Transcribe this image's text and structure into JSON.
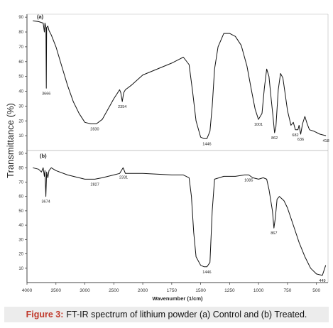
{
  "chart_data": {
    "type": "line",
    "ylabel": "Transmittance (%)",
    "xlabel": "Wavenumber (1/cm)",
    "xlim": [
      4000,
      400
    ],
    "x_ticks": [
      "4000",
      "3500",
      "3000",
      "2500",
      "2000",
      "1750",
      "1500",
      "1250",
      "1000",
      "750",
      "500"
    ],
    "panels": [
      {
        "label": "(a)",
        "ylim": [
          0,
          92
        ],
        "y_ticks": [
          "10",
          "20",
          "30",
          "40",
          "50",
          "60",
          "70",
          "80",
          "90"
        ],
        "series": [
          {
            "points": [
              [
                3900,
                87.5
              ],
              [
                3800,
                87
              ],
              [
                3720,
                86
              ],
              [
                3700,
                80
              ],
              [
                3690,
                86
              ],
              [
                3672,
                83
              ],
              [
                3666,
                42
              ],
              [
                3660,
                83
              ],
              [
                3640,
                84
              ],
              [
                3620,
                81
              ],
              [
                3580,
                78
              ],
              [
                3500,
                70
              ],
              [
                3400,
                57
              ],
              [
                3300,
                44
              ],
              [
                3200,
                33
              ],
              [
                3100,
                25
              ],
              [
                3000,
                19
              ],
              [
                2900,
                18
              ],
              [
                2800,
                18
              ],
              [
                2700,
                21
              ],
              [
                2600,
                28
              ],
              [
                2500,
                35
              ],
              [
                2400,
                41
              ],
              [
                2380,
                39
              ],
              [
                2354,
                33
              ],
              [
                2330,
                39
              ],
              [
                2300,
                41
              ],
              [
                2200,
                44
              ],
              [
                2000,
                51
              ],
              [
                1750,
                59
              ],
              [
                1650,
                63
              ],
              [
                1600,
                58
              ],
              [
                1570,
                40
              ],
              [
                1540,
                20
              ],
              [
                1500,
                9
              ],
              [
                1470,
                8
              ],
              [
                1446,
                8
              ],
              [
                1420,
                13
              ],
              [
                1400,
                30
              ],
              [
                1380,
                55
              ],
              [
                1350,
                70
              ],
              [
                1300,
                79
              ],
              [
                1250,
                79
              ],
              [
                1200,
                77
              ],
              [
                1150,
                71
              ],
              [
                1100,
                57
              ],
              [
                1060,
                40
              ],
              [
                1030,
                28
              ],
              [
                1001,
                21
              ],
              [
                970,
                25
              ],
              [
                950,
                42
              ],
              [
                930,
                55
              ],
              [
                910,
                50
              ],
              [
                890,
                34
              ],
              [
                875,
                23
              ],
              [
                862,
                12
              ],
              [
                850,
                16
              ],
              [
                830,
                41
              ],
              [
                810,
                52
              ],
              [
                790,
                49
              ],
              [
                770,
                38
              ],
              [
                750,
                27
              ],
              [
                720,
                17
              ],
              [
                700,
                19
              ],
              [
                682,
                14
              ],
              [
                660,
                14
              ],
              [
                650,
                17
              ],
              [
                636,
                11
              ],
              [
                620,
                18
              ],
              [
                600,
                23
              ],
              [
                580,
                18
              ],
              [
                560,
                14
              ],
              [
                520,
                13
              ],
              [
                470,
                11
              ],
              [
                418,
                10
              ]
            ]
          }
        ],
        "annotations": [
          {
            "text": "3666",
            "x": 3666,
            "y": 42
          },
          {
            "text": "2830",
            "x": 2830,
            "y": 18
          },
          {
            "text": "2354",
            "x": 2354,
            "y": 33
          },
          {
            "text": "1446",
            "x": 1446,
            "y": 8
          },
          {
            "text": "1001",
            "x": 1001,
            "y": 21
          },
          {
            "text": "862",
            "x": 862,
            "y": 12
          },
          {
            "text": "682",
            "x": 682,
            "y": 14
          },
          {
            "text": "636",
            "x": 636,
            "y": 11
          },
          {
            "text": "418",
            "x": 418,
            "y": 10
          }
        ]
      },
      {
        "label": "(b)",
        "ylim": [
          0,
          92
        ],
        "y_ticks": [
          "10",
          "20",
          "30",
          "40",
          "50",
          "60",
          "70",
          "80",
          "90"
        ],
        "series": [
          {
            "points": [
              [
                3900,
                80
              ],
              [
                3800,
                79
              ],
              [
                3750,
                77
              ],
              [
                3720,
                80
              ],
              [
                3700,
                74
              ],
              [
                3690,
                78
              ],
              [
                3674,
                60
              ],
              [
                3660,
                77
              ],
              [
                3640,
                73
              ],
              [
                3620,
                78
              ],
              [
                3580,
                80
              ],
              [
                3500,
                78
              ],
              [
                3300,
                75
              ],
              [
                3000,
                72
              ],
              [
                2827,
                72
              ],
              [
                2700,
                73
              ],
              [
                2500,
                75
              ],
              [
                2400,
                76
              ],
              [
                2340,
                80
              ],
              [
                2300,
                76
              ],
              [
                2000,
                76
              ],
              [
                1750,
                75
              ],
              [
                1650,
                75
              ],
              [
                1600,
                73
              ],
              [
                1580,
                60
              ],
              [
                1560,
                35
              ],
              [
                1540,
                18
              ],
              [
                1500,
                12
              ],
              [
                1470,
                11
              ],
              [
                1446,
                11
              ],
              [
                1420,
                14
              ],
              [
                1400,
                50
              ],
              [
                1380,
                72
              ],
              [
                1300,
                74
              ],
              [
                1200,
                74
              ],
              [
                1120,
                75
              ],
              [
                1085,
                75
              ],
              [
                1050,
                73
              ],
              [
                1000,
                72
              ],
              [
                960,
                73
              ],
              [
                930,
                72
              ],
              [
                910,
                65
              ],
              [
                880,
                50
              ],
              [
                867,
                38
              ],
              [
                855,
                45
              ],
              [
                840,
                58
              ],
              [
                820,
                60
              ],
              [
                780,
                57
              ],
              [
                750,
                52
              ],
              [
                700,
                40
              ],
              [
                650,
                28
              ],
              [
                600,
                18
              ],
              [
                550,
                10
              ],
              [
                500,
                6
              ],
              [
                449,
                5
              ],
              [
                420,
                12
              ]
            ]
          }
        ],
        "annotations": [
          {
            "text": "3674",
            "x": 3674,
            "y": 60
          },
          {
            "text": "2827",
            "x": 2827,
            "y": 72
          },
          {
            "text": "2331",
            "x": 2331,
            "y": 77
          },
          {
            "text": "1446",
            "x": 1446,
            "y": 11
          },
          {
            "text": "1085",
            "x": 1085,
            "y": 75
          },
          {
            "text": "867",
            "x": 867,
            "y": 38
          },
          {
            "text": "449",
            "x": 449,
            "y": 5
          }
        ]
      }
    ]
  },
  "caption": {
    "figure_number": "Figure 3:",
    "text": "FT-IR spectrum of lithium powder (a) Control and (b) Treated."
  }
}
